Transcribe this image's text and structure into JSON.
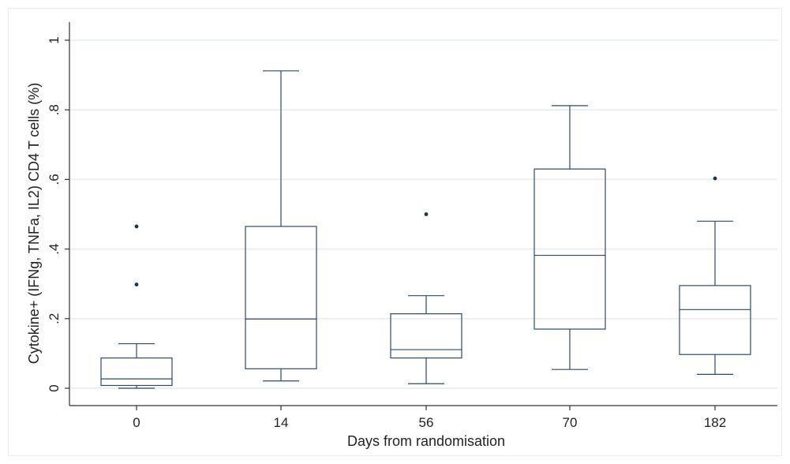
{
  "chart_data": {
    "type": "box",
    "xlabel": "Days from randomisation",
    "ylabel": "Cytokine+ (IFNg, TNFa, IL2) CD4 T cells (%)",
    "ylim": [
      0,
      1
    ],
    "y_ticks": [
      0,
      0.2,
      0.4,
      0.6,
      0.8,
      1
    ],
    "y_tick_labels": [
      "0",
      ".2",
      ".4",
      ".6",
      ".8",
      "1"
    ],
    "grid": true,
    "categories": [
      "0",
      "14",
      "56",
      "70",
      "182"
    ],
    "boxes": [
      {
        "category": "0",
        "whisker_low": 0.0,
        "q1": 0.008,
        "median": 0.027,
        "q3": 0.087,
        "whisker_high": 0.128,
        "outliers": [
          0.298,
          0.465
        ]
      },
      {
        "category": "14",
        "whisker_low": 0.021,
        "q1": 0.056,
        "median": 0.199,
        "q3": 0.465,
        "whisker_high": 0.912,
        "outliers": []
      },
      {
        "category": "56",
        "whisker_low": 0.013,
        "q1": 0.087,
        "median": 0.111,
        "q3": 0.214,
        "whisker_high": 0.266,
        "outliers": [
          0.5
        ]
      },
      {
        "category": "70",
        "whisker_low": 0.054,
        "q1": 0.17,
        "median": 0.382,
        "q3": 0.63,
        "whisker_high": 0.812,
        "outliers": []
      },
      {
        "category": "182",
        "whisker_low": 0.04,
        "q1": 0.097,
        "median": 0.226,
        "q3": 0.295,
        "whisker_high": 0.48,
        "outliers": [
          0.603
        ]
      }
    ],
    "colors": {
      "box": "#2e4a6b",
      "outlier": "#1a3350",
      "grid": "#e2ebf0",
      "axis": "#333333"
    }
  }
}
